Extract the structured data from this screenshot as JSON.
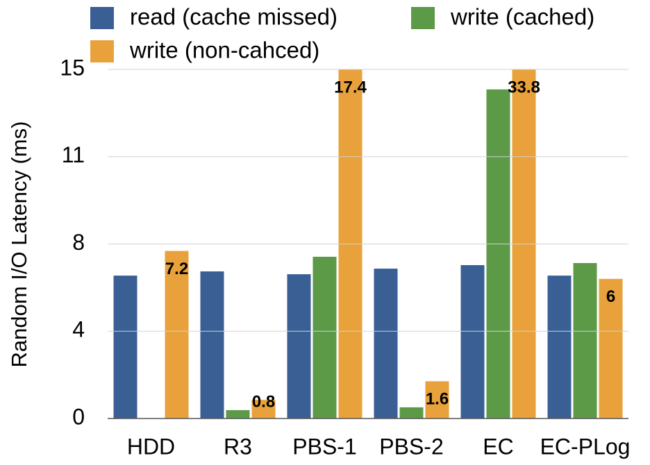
{
  "chart_data": {
    "type": "bar",
    "y_label": "Random I/O Latency (ms)",
    "categories": [
      "HDD",
      "R3",
      "PBS-1",
      "PBS-2",
      "EC",
      "EC-PLog"
    ],
    "series": [
      {
        "name": "read (cache missed)",
        "color": "#3a5f95",
        "values": [
          6.14,
          6.32,
          6.2,
          6.44,
          6.59,
          6.14
        ]
      },
      {
        "name": "write (cached)",
        "color": "#5c9a48",
        "values": [
          null,
          0.36,
          6.95,
          0.48,
          14.14,
          6.68
        ]
      },
      {
        "name": "write (non-cahced)",
        "color": "#e9a23b",
        "values": [
          7.2,
          0.8,
          17.4,
          1.6,
          33.8,
          6
        ],
        "value_labels": [
          "7.2",
          "0.8",
          "17.4",
          "1.6",
          "33.8",
          "6"
        ]
      }
    ],
    "ylim": [
      0,
      15
    ],
    "yticks": [
      0,
      {
        "value": 3.75,
        "label": "4"
      },
      {
        "value": 7.5,
        "label": "8"
      },
      {
        "value": 11.25,
        "label": "11"
      },
      15
    ],
    "grid": true
  }
}
